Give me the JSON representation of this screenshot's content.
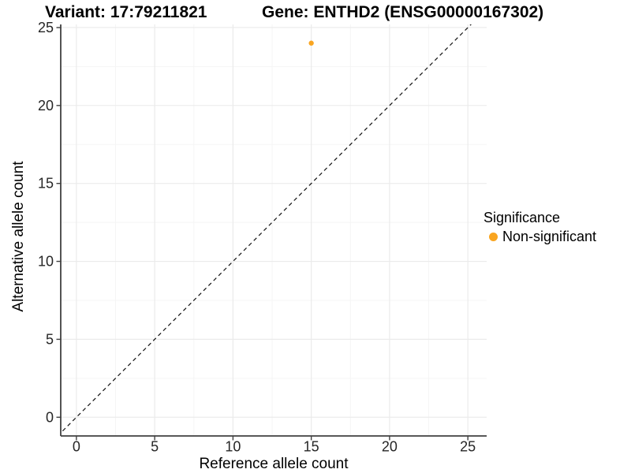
{
  "titles": {
    "variant": "Variant: 17:79211821",
    "gene": "Gene: ENTHD2 (ENSG00000167302)"
  },
  "chart_data": {
    "type": "scatter",
    "title_left": "Variant: 17:79211821",
    "title_right": "Gene: ENTHD2 (ENSG00000167302)",
    "xlabel": "Reference allele count",
    "ylabel": "Alternative allele count",
    "xlim": [
      -1,
      26.2
    ],
    "ylim": [
      -1.2,
      25.2
    ],
    "xticks": [
      0,
      5,
      10,
      15,
      20,
      25
    ],
    "yticks": [
      0,
      5,
      10,
      15,
      20,
      25
    ],
    "minor_x": [
      2.5,
      7.5,
      12.5,
      17.5,
      22.5
    ],
    "minor_y": [
      2.5,
      7.5,
      12.5,
      17.5,
      22.5
    ],
    "grid": true,
    "points": [
      {
        "x": 15,
        "y": 24,
        "series": "Non-significant"
      }
    ],
    "identity_line": {
      "slope": 1,
      "intercept": 0,
      "style": "dashed",
      "color": "#111111",
      "from": [
        -1.2,
        -1.2
      ],
      "to": [
        25.5,
        25.5
      ]
    },
    "legend": {
      "title": "Significance",
      "position": "right",
      "items": [
        {
          "label": "Non-significant",
          "color": "#F9A520"
        }
      ]
    },
    "colors": {
      "point": "#F9A520",
      "grid_major": "#EBEBEB",
      "grid_minor": "#F5F5F5",
      "axis_line": "#404040",
      "tick_label": "#262626"
    }
  }
}
